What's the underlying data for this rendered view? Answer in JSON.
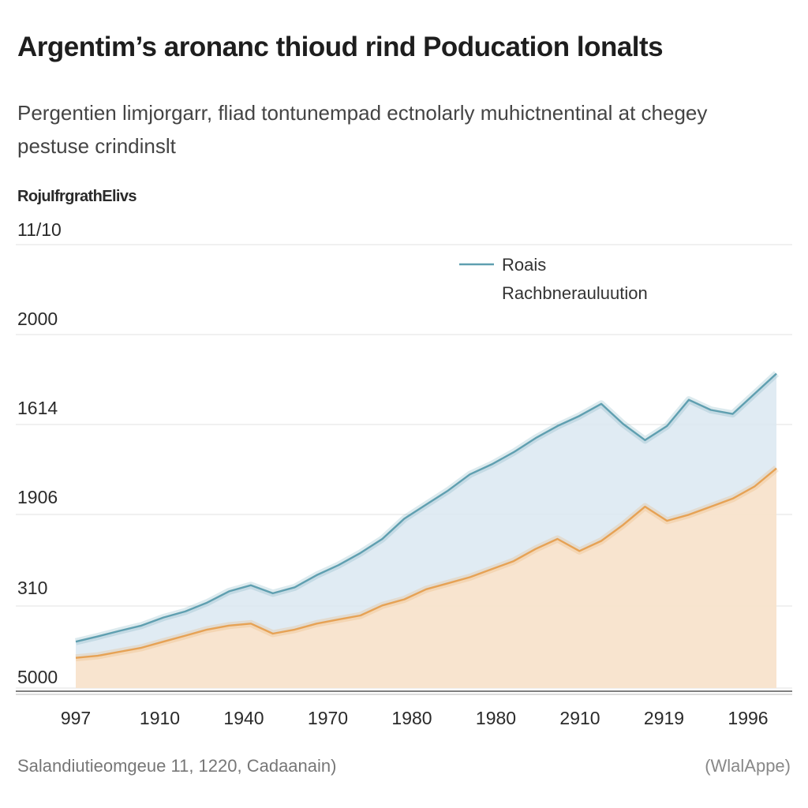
{
  "chart_data": {
    "type": "area",
    "title": "Argentim’s aronanc thioud rind Poducation lonalts",
    "subtitle": "Pergentien limjorgarr, fliad tontunempad ectnolarly muhictnentinal at chegey pestuse crindinslt",
    "ylabel": "RojuIfrgrathElivs",
    "x_tick_labels": [
      "997",
      "1910",
      "1940",
      "1970",
      "1980",
      "1980",
      "2910",
      "2919",
      "1996"
    ],
    "y_tick_labels": [
      "5000",
      "310",
      "1906",
      "1614",
      "2000",
      "11/10"
    ],
    "ylim": [
      0,
      11
    ],
    "grid": true,
    "legend_position": "top-right",
    "series": [
      {
        "name": "Roais",
        "color": "#5f9fb0",
        "fill": "#dbe8f1",
        "x": [
          0,
          0.25,
          0.5,
          0.75,
          1,
          1.25,
          1.5,
          1.75,
          2,
          2.25,
          2.5,
          2.75,
          3,
          3.25,
          3.5,
          3.75,
          4,
          4.25,
          4.5,
          4.75,
          5,
          5.25,
          5.5,
          5.75,
          6,
          6.25,
          6.5,
          6.75,
          7,
          7.25,
          7.5,
          7.75,
          8
        ],
        "values": [
          1.15,
          1.28,
          1.42,
          1.55,
          1.75,
          1.9,
          2.12,
          2.4,
          2.55,
          2.35,
          2.5,
          2.8,
          3.05,
          3.35,
          3.7,
          4.2,
          4.55,
          4.9,
          5.3,
          5.55,
          5.85,
          6.2,
          6.5,
          6.75,
          7.05,
          6.55,
          6.15,
          6.5,
          7.15,
          6.9,
          6.8,
          7.3,
          7.8
        ]
      },
      {
        "name": "Rachbnerauluution",
        "color": "#e6a255",
        "fill": "#fbe3c8",
        "x": [
          0,
          0.25,
          0.5,
          0.75,
          1,
          1.25,
          1.5,
          1.75,
          2,
          2.25,
          2.5,
          2.75,
          3,
          3.25,
          3.5,
          3.75,
          4,
          4.25,
          4.5,
          4.75,
          5,
          5.25,
          5.5,
          5.75,
          6,
          6.25,
          6.5,
          6.75,
          7,
          7.25,
          7.5,
          7.75,
          8
        ],
        "values": [
          0.75,
          0.8,
          0.9,
          1.0,
          1.15,
          1.3,
          1.45,
          1.55,
          1.6,
          1.35,
          1.45,
          1.6,
          1.7,
          1.8,
          2.05,
          2.2,
          2.45,
          2.6,
          2.75,
          2.95,
          3.15,
          3.45,
          3.7,
          3.4,
          3.65,
          4.05,
          4.5,
          4.15,
          4.3,
          4.5,
          4.7,
          5.0,
          5.45
        ]
      }
    ]
  },
  "footer": {
    "source": "Salandiutieomgeue 11, 1220, Cadaanain)",
    "credit": "(WlalAppe)"
  }
}
